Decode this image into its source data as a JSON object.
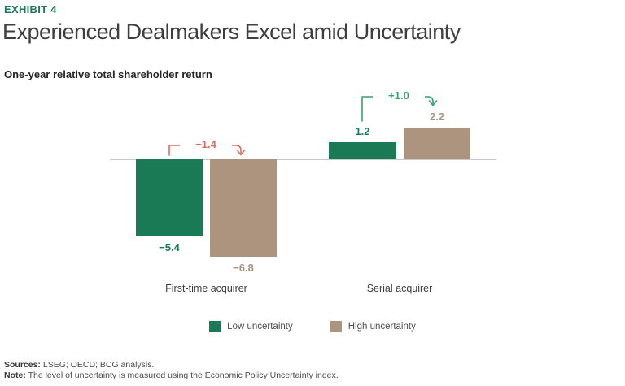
{
  "header": {
    "eyebrow": "EXHIBIT 4",
    "title": "Experienced Dealmakers Excel amid Uncertainty",
    "subtitle": "One-year relative total shareholder return"
  },
  "chart_data": {
    "type": "bar",
    "title": "One-year relative total shareholder return",
    "categories": [
      "First-time acquirer",
      "Serial acquirer"
    ],
    "series": [
      {
        "name": "Low uncertainty",
        "color": "#1B7A56",
        "values": [
          -5.4,
          1.2
        ]
      },
      {
        "name": "High uncertainty",
        "color": "#AC947E",
        "values": [
          -6.8,
          2.2
        ]
      }
    ],
    "bars": [
      {
        "category": "First-time acquirer",
        "series": "Low uncertainty",
        "value": -5.4,
        "label": "−5.4",
        "color": "#1B7A56"
      },
      {
        "category": "First-time acquirer",
        "series": "High uncertainty",
        "value": -6.8,
        "label": "−6.8",
        "color": "#AC947E"
      },
      {
        "category": "Serial acquirer",
        "series": "Low uncertainty",
        "value": 1.2,
        "label": "1.2",
        "color": "#1B7A56"
      },
      {
        "category": "Serial acquirer",
        "series": "High uncertainty",
        "value": 2.2,
        "label": "2.2",
        "color": "#AC947E"
      }
    ],
    "annotations": [
      {
        "category": "First-time acquirer",
        "label": "−1.4",
        "value": -1.4,
        "color": "#DF6E5E"
      },
      {
        "category": "Serial acquirer",
        "label": "+1.0",
        "value": 1.0,
        "color": "#33A46C"
      }
    ],
    "baseline_value": 0,
    "ylim": [
      -8,
      3.5
    ],
    "grid": false,
    "legend_position": "bottom",
    "axis_color": "#C9C9C9"
  },
  "legend": {
    "items": [
      {
        "label": "Low uncertainty",
        "color": "#1B7A56"
      },
      {
        "label": "High uncertainty",
        "color": "#AC947E"
      }
    ]
  },
  "footer": {
    "sources_label": "Sources:",
    "sources_text": "LSEG; OECD; BCG analysis.",
    "note_label": "Note:",
    "note_text": "The level of uncertainty is measured using the Economic Policy Uncertainty index."
  }
}
